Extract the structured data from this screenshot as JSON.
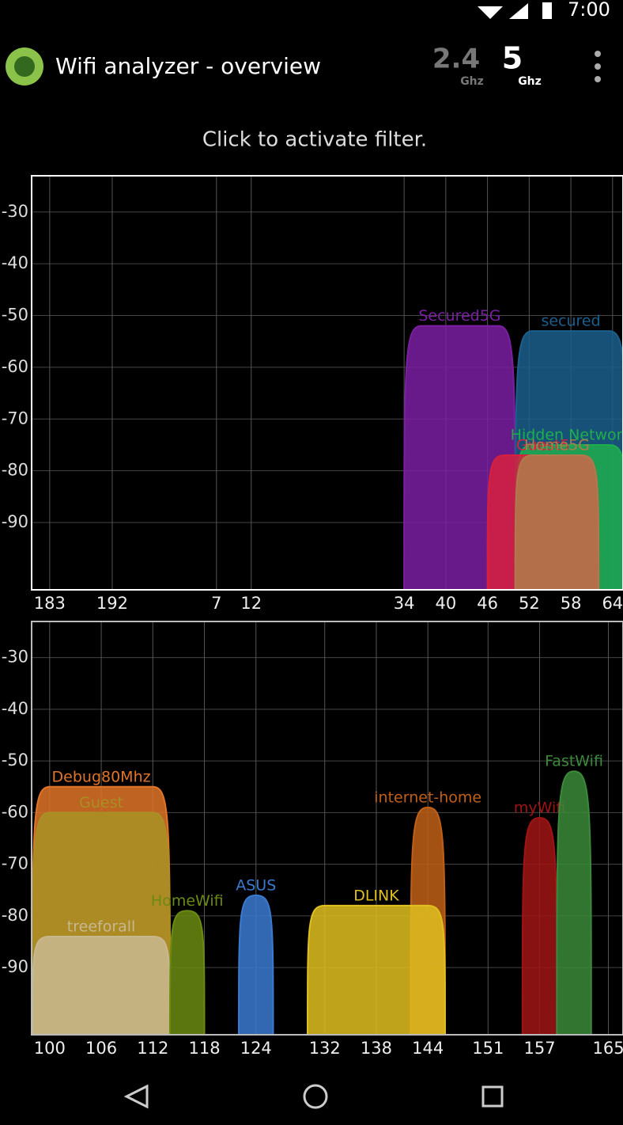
{
  "status_bar": {
    "time": "7:00"
  },
  "app_bar": {
    "title": "Wifi analyzer - overview",
    "bands": [
      {
        "label": "2.4",
        "unit": "Ghz"
      },
      {
        "label": "5",
        "unit": "Ghz"
      }
    ]
  },
  "hint": "Click to activate filter.",
  "chart_data": [
    {
      "type": "spectrum",
      "xlim": [
        -19.6,
        65.5
      ],
      "ylim": [
        -103,
        -23
      ],
      "grid": true,
      "xticks": [
        {
          "value": -17,
          "label": "183"
        },
        {
          "value": -8,
          "label": "192"
        },
        7,
        12,
        34,
        40,
        46,
        52,
        58,
        64
      ],
      "yticks": [
        -30,
        -40,
        -50,
        -60,
        -70,
        -80,
        -90
      ],
      "series": [
        {
          "name": "Secured5G",
          "color": "#7b1fa2",
          "channels": [
            34,
            50
          ],
          "value": -52
        },
        {
          "name": "secured",
          "color": "#1c5f8c",
          "channels": [
            50,
            66
          ],
          "value": -53
        },
        {
          "name": "Hidden Network",
          "color": "#1fae4c",
          "channels": [
            50,
            66
          ],
          "value": -75
        },
        {
          "name": "Guest5",
          "color": "#d8203e",
          "channels": [
            46,
            62
          ],
          "value": -77
        },
        {
          "name": "Home5G",
          "color": "#b07a4c",
          "channels": [
            50,
            62
          ],
          "value": -77
        }
      ]
    },
    {
      "type": "spectrum",
      "xlim": [
        97.9,
        166.7
      ],
      "ylim": [
        -103,
        -23
      ],
      "grid": true,
      "xticks": [
        100,
        106,
        112,
        118,
        124,
        132,
        138,
        144,
        151,
        157,
        165
      ],
      "yticks": [
        -30,
        -40,
        -50,
        -60,
        -70,
        -80,
        -90
      ],
      "series": [
        {
          "name": "Debug80Mhz",
          "color": "#e07428",
          "channels": [
            98,
            114
          ],
          "value": -55
        },
        {
          "name": "Guest",
          "color": "#a89024",
          "channels": [
            98,
            114
          ],
          "value": -60
        },
        {
          "name": "treeforall",
          "color": "#c8b890",
          "channels": [
            98,
            114
          ],
          "value": -84
        },
        {
          "name": "HomeWifi",
          "color": "#6b8a12",
          "channels": [
            114,
            118
          ],
          "value": -79
        },
        {
          "name": "ASUS",
          "color": "#3a7ad0",
          "channels": [
            122,
            126
          ],
          "value": -76
        },
        {
          "name": "internet-home",
          "color": "#c06018",
          "channels": [
            142,
            146
          ],
          "value": -59
        },
        {
          "name": "DLINK",
          "color": "#e0c020",
          "channels": [
            130,
            146
          ],
          "value": -78
        },
        {
          "name": "myWifi",
          "color": "#a01414",
          "channels": [
            155,
            159
          ],
          "value": -61
        },
        {
          "name": "FastWifi",
          "color": "#3a8a3a",
          "channels": [
            159,
            163
          ],
          "value": -52
        }
      ]
    }
  ]
}
